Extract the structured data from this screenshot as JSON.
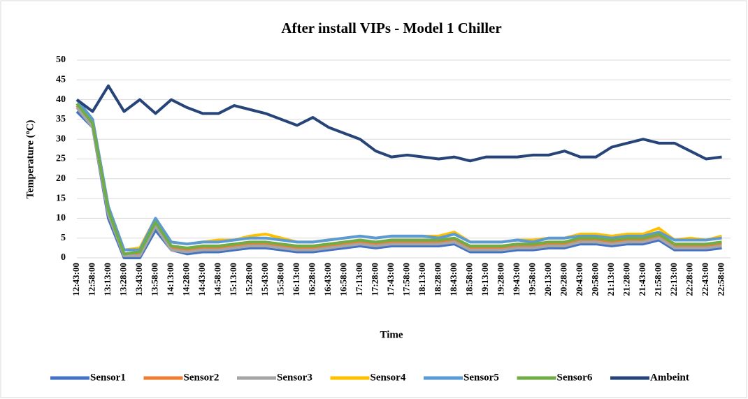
{
  "chart_data": {
    "type": "line",
    "title": "After install VIPs - Model 1 Chiller",
    "x_label": "Time",
    "y_label": "Temperature (ºC)",
    "categories": [
      "12:43:00",
      "12:58:00",
      "13:13:00",
      "13:28:00",
      "13:43:00",
      "13:58:00",
      "14:13:00",
      "14:28:00",
      "14:43:00",
      "14:58:00",
      "15:13:00",
      "15:28:00",
      "15:43:00",
      "15:58:00",
      "16:13:00",
      "16:28:00",
      "16:43:00",
      "16:58:00",
      "17:13:00",
      "17:28:00",
      "17:43:00",
      "17:58:00",
      "18:13:00",
      "18:28:00",
      "18:43:00",
      "18:58:00",
      "19:13:00",
      "19:28:00",
      "19:43:00",
      "19:58:00",
      "20:13:00",
      "20:28:00",
      "20:43:00",
      "20:58:00",
      "21:13:00",
      "21:28:00",
      "21:43:00",
      "21:58:00",
      "22:13:00",
      "22:28:00",
      "22:43:00",
      "22:58:00"
    ],
    "series": [
      {
        "name": "Sensor1",
        "color": "#4472c4",
        "values": [
          37,
          33,
          10,
          0,
          0,
          7,
          2,
          1,
          1.5,
          1.5,
          2,
          2.5,
          2.5,
          2,
          1.5,
          1.5,
          2,
          2.5,
          3,
          2.5,
          3,
          3,
          3,
          3,
          3.5,
          1.5,
          1.5,
          1.5,
          2,
          2,
          2.5,
          2.5,
          3.5,
          3.5,
          3,
          3.5,
          3.5,
          4.5,
          2,
          2,
          2,
          2.5
        ]
      },
      {
        "name": "Sensor2",
        "color": "#ed7d31",
        "values": [
          38.5,
          33.5,
          11.5,
          0.5,
          1,
          8.5,
          2.5,
          2,
          2.5,
          2.5,
          3,
          3.5,
          3.5,
          3,
          2.5,
          2.5,
          3,
          3.5,
          4,
          3.5,
          4,
          4,
          4,
          4,
          4.5,
          2.5,
          2.5,
          2.5,
          3,
          3,
          3.5,
          3.5,
          4.5,
          4.5,
          4,
          4.5,
          4.5,
          5.5,
          3,
          3,
          3,
          3.5
        ]
      },
      {
        "name": "Sensor3",
        "color": "#a5a5a5",
        "values": [
          38,
          33,
          11,
          0.5,
          0.5,
          8,
          2,
          1.5,
          2,
          2,
          2.5,
          3,
          3,
          2.5,
          2,
          2,
          2.5,
          3,
          3.5,
          3,
          3.5,
          3.5,
          3.5,
          3.5,
          4,
          2,
          2,
          2,
          2.5,
          2.5,
          3,
          3,
          4,
          4,
          3.5,
          4,
          4,
          5,
          2.5,
          2.5,
          2.5,
          3
        ]
      },
      {
        "name": "Sensor4",
        "color": "#ffc000",
        "values": [
          40,
          35,
          13,
          2,
          2.5,
          10,
          4,
          3.5,
          4,
          4.5,
          4.5,
          5.5,
          6,
          5,
          4,
          4,
          4.5,
          5,
          5.5,
          5,
          5.5,
          5.5,
          5.5,
          5.5,
          6.5,
          4,
          4,
          4,
          4.5,
          4.5,
          5,
          5,
          6,
          6,
          5.5,
          6,
          6,
          7.5,
          4.5,
          5,
          4.5,
          5.5
        ]
      },
      {
        "name": "Sensor5",
        "color": "#5b9bd5",
        "values": [
          40,
          35,
          13,
          2,
          2,
          10,
          4,
          3.5,
          4,
          4,
          4.5,
          5,
          5,
          4.5,
          4,
          4,
          4.5,
          5,
          5.5,
          5,
          5.5,
          5.5,
          5.5,
          5,
          6,
          4,
          4,
          4,
          4.5,
          4,
          5,
          5,
          5.5,
          5.5,
          5,
          5.5,
          5.5,
          6.5,
          4.5,
          4.5,
          4.5,
          5
        ]
      },
      {
        "name": "Sensor6",
        "color": "#70ad47",
        "values": [
          39,
          34,
          12,
          1,
          1.5,
          9,
          3,
          2.5,
          3,
          3,
          3.5,
          4,
          4,
          3.5,
          3,
          3,
          3.5,
          4,
          4.5,
          4,
          4.5,
          4.5,
          4.5,
          4.5,
          5,
          3,
          3,
          3,
          3.5,
          3.5,
          4,
          4,
          5,
          5,
          4.5,
          5,
          5,
          6,
          3.5,
          3.5,
          3.5,
          4
        ]
      },
      {
        "name": "Ambeint",
        "color": "#264478",
        "values": [
          40,
          37,
          43.5,
          37,
          40,
          36.5,
          40,
          38,
          36.5,
          36.5,
          38.5,
          37.5,
          36.5,
          35,
          33.5,
          35.5,
          33,
          31.5,
          30,
          27,
          25.5,
          26,
          25.5,
          25,
          25.5,
          24.5,
          25.5,
          25.5,
          25.5,
          26,
          26,
          27,
          25.5,
          25.5,
          28,
          29,
          30,
          29,
          29,
          27,
          25,
          25.5
        ]
      }
    ],
    "ylim": [
      0,
      50
    ],
    "yticks": [
      0,
      5,
      10,
      15,
      20,
      25,
      30,
      35,
      40,
      45,
      50
    ],
    "grid": true,
    "legend": "bottom"
  }
}
